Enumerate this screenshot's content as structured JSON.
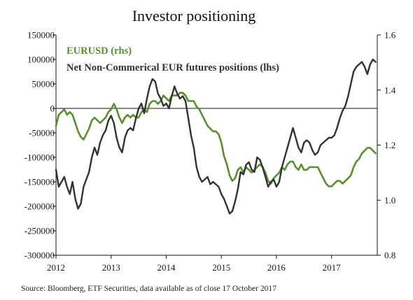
{
  "chart_data": {
    "type": "line",
    "title": "Investor positioning",
    "source": "Source: Bloomberg, ETF Securities, data available as of close 17 October 2017",
    "x_tick_labels": [
      "2012",
      "2013",
      "2014",
      "2015",
      "2016",
      "2017"
    ],
    "x_range": [
      2012.0,
      2017.83
    ],
    "left_axis": {
      "ticks": [
        150000,
        100000,
        50000,
        0,
        -50000,
        -100000,
        -150000,
        -200000,
        -250000,
        -300000
      ],
      "tick_labels": [
        "150000",
        "100000",
        "50000",
        "0",
        "-50000",
        "-100000",
        "-150000",
        "-200000",
        "-250000",
        "-300000"
      ],
      "ylim": [
        -300000,
        150000
      ]
    },
    "right_axis": {
      "ticks": [
        1.6,
        1.4,
        1.2,
        1.0,
        0.8
      ],
      "tick_labels": [
        "1.6",
        "1.4",
        "1.2",
        "1.0",
        "0.8"
      ],
      "ylim": [
        0.8,
        1.6
      ]
    },
    "grid": false,
    "zero_line": true,
    "legend_position": "top-left",
    "series": [
      {
        "name": "EURUSD (rhs)",
        "axis": "right",
        "color": "#5a8f2f",
        "x": [
          2012.0,
          2012.05,
          2012.1,
          2012.15,
          2012.2,
          2012.25,
          2012.3,
          2012.35,
          2012.4,
          2012.45,
          2012.5,
          2012.55,
          2012.6,
          2012.65,
          2012.7,
          2012.75,
          2012.8,
          2012.85,
          2012.9,
          2012.95,
          2013.0,
          2013.05,
          2013.1,
          2013.15,
          2013.2,
          2013.25,
          2013.3,
          2013.35,
          2013.4,
          2013.45,
          2013.5,
          2013.55,
          2013.6,
          2013.65,
          2013.7,
          2013.75,
          2013.8,
          2013.85,
          2013.9,
          2013.95,
          2014.0,
          2014.05,
          2014.1,
          2014.15,
          2014.2,
          2014.25,
          2014.3,
          2014.35,
          2014.4,
          2014.45,
          2014.5,
          2014.55,
          2014.6,
          2014.65,
          2014.7,
          2014.75,
          2014.8,
          2014.85,
          2014.9,
          2014.95,
          2015.0,
          2015.05,
          2015.1,
          2015.15,
          2015.2,
          2015.25,
          2015.3,
          2015.35,
          2015.4,
          2015.45,
          2015.5,
          2015.55,
          2015.6,
          2015.65,
          2015.7,
          2015.75,
          2015.8,
          2015.85,
          2015.9,
          2015.95,
          2016.0,
          2016.05,
          2016.1,
          2016.15,
          2016.2,
          2016.25,
          2016.3,
          2016.35,
          2016.4,
          2016.45,
          2016.5,
          2016.55,
          2016.6,
          2016.65,
          2016.7,
          2016.75,
          2016.8,
          2016.85,
          2016.9,
          2016.95,
          2017.0,
          2017.05,
          2017.1,
          2017.15,
          2017.2,
          2017.25,
          2017.3,
          2017.35,
          2017.4,
          2017.45,
          2017.5,
          2017.55,
          2017.6,
          2017.65,
          2017.7,
          2017.75,
          2017.8
        ],
        "values": [
          1.27,
          1.31,
          1.32,
          1.33,
          1.31,
          1.32,
          1.31,
          1.28,
          1.25,
          1.23,
          1.22,
          1.24,
          1.26,
          1.29,
          1.3,
          1.29,
          1.28,
          1.29,
          1.3,
          1.32,
          1.33,
          1.35,
          1.33,
          1.3,
          1.28,
          1.3,
          1.31,
          1.3,
          1.31,
          1.3,
          1.3,
          1.32,
          1.33,
          1.32,
          1.35,
          1.36,
          1.36,
          1.35,
          1.36,
          1.38,
          1.37,
          1.36,
          1.38,
          1.38,
          1.38,
          1.39,
          1.39,
          1.38,
          1.36,
          1.36,
          1.36,
          1.34,
          1.33,
          1.31,
          1.29,
          1.27,
          1.26,
          1.25,
          1.25,
          1.24,
          1.21,
          1.16,
          1.13,
          1.09,
          1.07,
          1.08,
          1.11,
          1.12,
          1.1,
          1.12,
          1.11,
          1.1,
          1.11,
          1.12,
          1.13,
          1.12,
          1.1,
          1.07,
          1.06,
          1.08,
          1.09,
          1.1,
          1.12,
          1.11,
          1.13,
          1.14,
          1.14,
          1.12,
          1.11,
          1.13,
          1.11,
          1.11,
          1.12,
          1.12,
          1.12,
          1.12,
          1.1,
          1.08,
          1.06,
          1.05,
          1.05,
          1.06,
          1.07,
          1.07,
          1.06,
          1.07,
          1.08,
          1.09,
          1.12,
          1.14,
          1.15,
          1.17,
          1.18,
          1.19,
          1.19,
          1.18,
          1.17
        ]
      },
      {
        "name": "Net Non-Commerical EUR futures positions (lhs)",
        "axis": "left",
        "color": "#333333",
        "x": [
          2012.0,
          2012.05,
          2012.1,
          2012.15,
          2012.2,
          2012.25,
          2012.3,
          2012.35,
          2012.4,
          2012.45,
          2012.5,
          2012.55,
          2012.6,
          2012.65,
          2012.7,
          2012.75,
          2012.8,
          2012.85,
          2012.9,
          2012.95,
          2013.0,
          2013.05,
          2013.1,
          2013.15,
          2013.2,
          2013.25,
          2013.3,
          2013.35,
          2013.4,
          2013.45,
          2013.5,
          2013.55,
          2013.6,
          2013.65,
          2013.7,
          2013.75,
          2013.8,
          2013.85,
          2013.9,
          2013.95,
          2014.0,
          2014.05,
          2014.1,
          2014.15,
          2014.2,
          2014.25,
          2014.3,
          2014.35,
          2014.4,
          2014.45,
          2014.5,
          2014.55,
          2014.6,
          2014.65,
          2014.7,
          2014.75,
          2014.8,
          2014.85,
          2014.9,
          2014.95,
          2015.0,
          2015.05,
          2015.1,
          2015.15,
          2015.2,
          2015.25,
          2015.3,
          2015.35,
          2015.4,
          2015.45,
          2015.5,
          2015.55,
          2015.6,
          2015.65,
          2015.7,
          2015.75,
          2015.8,
          2015.85,
          2015.9,
          2015.95,
          2016.0,
          2016.05,
          2016.1,
          2016.15,
          2016.2,
          2016.25,
          2016.3,
          2016.35,
          2016.4,
          2016.45,
          2016.5,
          2016.55,
          2016.6,
          2016.65,
          2016.7,
          2016.75,
          2016.8,
          2016.85,
          2016.9,
          2016.95,
          2017.0,
          2017.05,
          2017.1,
          2017.15,
          2017.2,
          2017.25,
          2017.3,
          2017.35,
          2017.4,
          2017.45,
          2017.5,
          2017.55,
          2017.6,
          2017.65,
          2017.7,
          2017.75,
          2017.8
        ],
        "values": [
          -125000,
          -160000,
          -150000,
          -140000,
          -160000,
          -175000,
          -150000,
          -185000,
          -205000,
          -195000,
          -160000,
          -145000,
          -130000,
          -100000,
          -80000,
          -95000,
          -70000,
          -55000,
          -45000,
          -25000,
          -15000,
          -30000,
          -60000,
          -80000,
          -90000,
          -60000,
          -45000,
          -40000,
          -45000,
          -20000,
          0,
          10000,
          -10000,
          20000,
          45000,
          60000,
          55000,
          30000,
          20000,
          5000,
          10000,
          0,
          25000,
          45000,
          30000,
          20000,
          25000,
          15000,
          -20000,
          -55000,
          -80000,
          -120000,
          -140000,
          -150000,
          -145000,
          -140000,
          -155000,
          -150000,
          -155000,
          -160000,
          -175000,
          -185000,
          -200000,
          -215000,
          -210000,
          -190000,
          -165000,
          -130000,
          -135000,
          -115000,
          -110000,
          -125000,
          -130000,
          -100000,
          -105000,
          -120000,
          -140000,
          -160000,
          -150000,
          -145000,
          -160000,
          -150000,
          -120000,
          -100000,
          -80000,
          -60000,
          -40000,
          -60000,
          -80000,
          -90000,
          -70000,
          -65000,
          -70000,
          -85000,
          -95000,
          -90000,
          -75000,
          -70000,
          -65000,
          -60000,
          -60000,
          -55000,
          -40000,
          -20000,
          -5000,
          5000,
          25000,
          50000,
          75000,
          85000,
          90000,
          95000,
          85000,
          70000,
          90000,
          100000,
          95000
        ]
      }
    ]
  }
}
